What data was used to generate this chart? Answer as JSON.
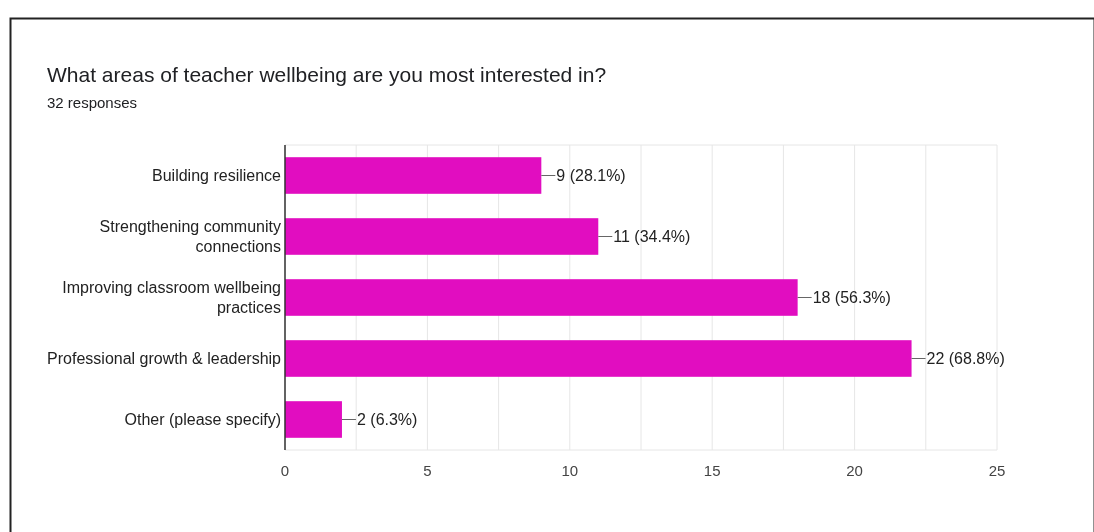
{
  "chart_data": {
    "type": "bar",
    "orientation": "horizontal",
    "title": "What areas of teacher wellbeing are you most interested in?",
    "subtitle": "32 responses",
    "categories": [
      "Building resilience",
      "Strengthening community connections",
      "Improving classroom wellbeing practices",
      "Professional growth & leadership",
      "Other (please specify)"
    ],
    "values": [
      9,
      11,
      18,
      22,
      2
    ],
    "value_labels": [
      "9 (28.1%)",
      "11 (34.4%)",
      "18 (56.3%)",
      "22 (68.8%)",
      "2 (6.3%)"
    ],
    "color": "#e10dc0",
    "xlim": [
      0,
      25
    ],
    "xticks": [
      0,
      {
        "value": 2.5,
        "label": null
      },
      5,
      {
        "value": 7.5,
        "label": null
      },
      10,
      {
        "value": 12.5,
        "label": null
      },
      15,
      {
        "value": 17.5,
        "label": null
      },
      20,
      {
        "value": 22.5,
        "label": null
      },
      25
    ],
    "grid": "x"
  }
}
